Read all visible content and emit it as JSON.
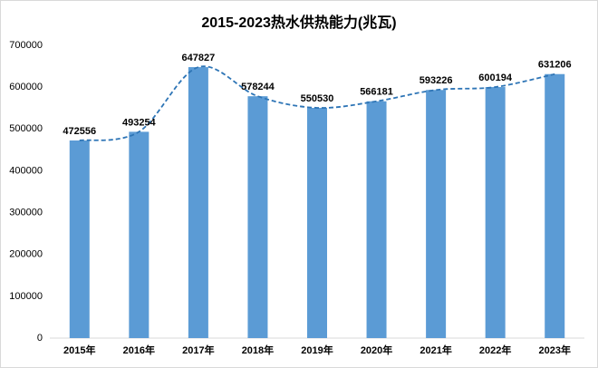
{
  "chart_data": {
    "type": "bar",
    "title": "2015-2023热水供热能力(兆瓦)",
    "categories": [
      "2015年",
      "2016年",
      "2017年",
      "2018年",
      "2019年",
      "2020年",
      "2021年",
      "2022年",
      "2023年"
    ],
    "values": [
      472556,
      493254,
      647827,
      578244,
      550530,
      566181,
      593226,
      600194,
      631206
    ],
    "color": "#5b9bd5",
    "trendline": true,
    "trendline_color": "#2e75b6",
    "ylim": [
      0,
      700000
    ],
    "yticks": [
      0,
      100000,
      200000,
      300000,
      400000,
      500000,
      600000,
      700000
    ],
    "grid": false
  }
}
